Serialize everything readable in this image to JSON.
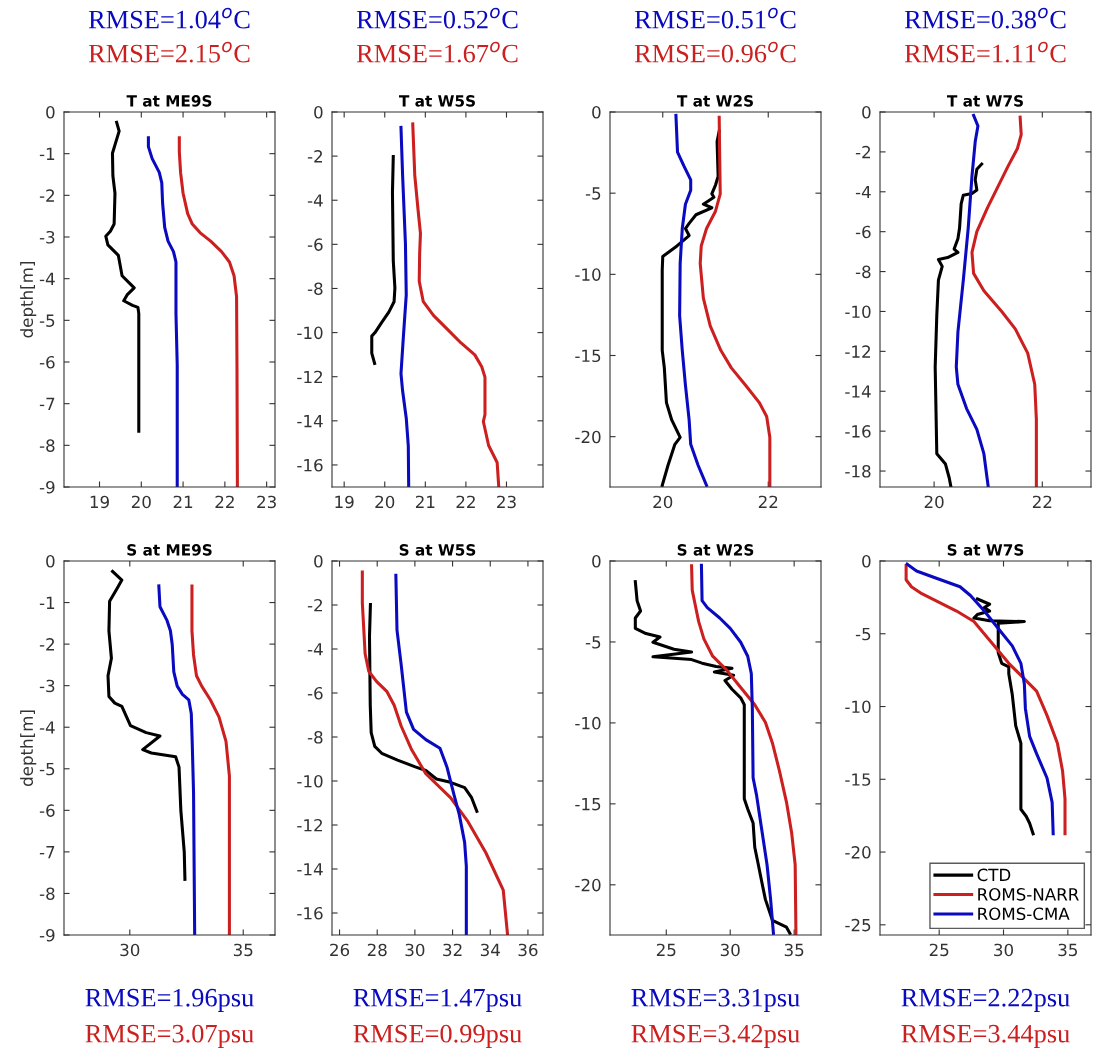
{
  "chart_data": [
    {
      "type": "line",
      "title": "T at ME9S",
      "ylabel": "depth[m]",
      "xlim": [
        18.15,
        23.2
      ],
      "xticks": [
        19,
        20,
        21,
        22,
        23
      ],
      "ylim": [
        -9,
        0
      ],
      "yticks": [
        0,
        -1,
        -2,
        -3,
        -4,
        -5,
        -6,
        -7,
        -8,
        -9
      ],
      "grid": false,
      "legend": false,
      "annotations": [
        "RMSE=1.04$^{o}$C",
        "RMSE=2.15$^{o}$C"
      ],
      "series": [
        {
          "color": "#000000",
          "x": [
            19.41,
            19.47,
            19.37,
            19.31,
            19.32,
            19.37,
            19.35,
            19.26,
            19.15,
            19.2,
            19.32,
            19.45,
            19.54,
            19.71,
            19.83,
            19.66,
            19.58,
            19.79,
            19.92,
            19.94,
            19.94,
            19.94
          ],
          "values": [
            -0.25,
            -0.46,
            -0.79,
            -0.99,
            -1.53,
            -1.95,
            -2.69,
            -2.86,
            -2.98,
            -3.19,
            -3.31,
            -3.44,
            -3.93,
            -4.1,
            -4.22,
            -4.39,
            -4.53,
            -4.64,
            -4.69,
            -4.84,
            -6.91,
            -7.66
          ]
        },
        {
          "color": "#cc1f1f",
          "x": [
            20.91,
            20.91,
            20.94,
            21.0,
            21.11,
            21.22,
            21.41,
            21.66,
            21.92,
            22.11,
            22.22,
            22.28,
            22.29,
            22.3
          ],
          "values": [
            -0.62,
            -0.95,
            -1.45,
            -1.95,
            -2.44,
            -2.69,
            -2.9,
            -3.1,
            -3.35,
            -3.6,
            -3.93,
            -4.43,
            -6.08,
            -9.0
          ]
        },
        {
          "color": "#0a0ac0",
          "x": [
            20.17,
            20.17,
            20.26,
            20.43,
            20.49,
            20.51,
            20.56,
            20.64,
            20.77,
            20.83,
            20.83,
            20.86,
            20.86
          ],
          "values": [
            -0.62,
            -0.83,
            -1.12,
            -1.45,
            -1.7,
            -2.19,
            -2.77,
            -3.1,
            -3.35,
            -3.6,
            -4.84,
            -6.08,
            -9.0
          ]
        }
      ]
    },
    {
      "type": "line",
      "title": "T at W5S",
      "xlim": [
        18.7,
        23.9
      ],
      "xticks": [
        19,
        20,
        21,
        22,
        23
      ],
      "ylim": [
        -17,
        0
      ],
      "yticks": [
        0,
        -2,
        -4,
        -6,
        -8,
        -10,
        -12,
        -14,
        -16
      ],
      "grid": false,
      "legend": false,
      "annotations": [
        "RMSE=0.52$^{o}$C",
        "RMSE=1.67$^{o}$C"
      ],
      "series": [
        {
          "color": "#000000",
          "x": [
            20.21,
            20.19,
            20.21,
            20.25,
            20.23,
            20.1,
            19.93,
            19.76,
            19.68,
            19.68,
            19.75
          ],
          "values": [
            -2.02,
            -3.64,
            -6.74,
            -7.98,
            -8.6,
            -9.07,
            -9.53,
            -10.0,
            -10.16,
            -10.93,
            -11.4
          ]
        },
        {
          "color": "#cc1f1f",
          "x": [
            20.69,
            20.74,
            20.82,
            20.88,
            20.86,
            20.85,
            20.95,
            21.2,
            21.54,
            21.88,
            22.22,
            22.39,
            22.47,
            22.47,
            22.43,
            22.56,
            22.77,
            22.81
          ],
          "values": [
            -0.54,
            -2.87,
            -4.42,
            -5.5,
            -6.43,
            -7.67,
            -8.6,
            -9.22,
            -9.84,
            -10.47,
            -11.01,
            -11.55,
            -12.02,
            -13.72,
            -14.03,
            -15.12,
            -15.89,
            -17.0
          ]
        },
        {
          "color": "#0a0ac0",
          "x": [
            20.4,
            20.44,
            20.51,
            20.53,
            20.46,
            20.4,
            20.44,
            20.53,
            20.58,
            20.59
          ],
          "values": [
            -0.7,
            -2.87,
            -5.97,
            -8.29,
            -10.16,
            -11.86,
            -12.64,
            -13.88,
            -15.12,
            -17.0
          ]
        }
      ]
    },
    {
      "type": "line",
      "title": "T at W2S",
      "xlim": [
        19,
        23
      ],
      "xticks": [
        20,
        22
      ],
      "ylim": [
        -23.1,
        0
      ],
      "yticks": [
        0,
        -5,
        -10,
        -15,
        -20
      ],
      "grid": false,
      "legend": false,
      "annotations": [
        "RMSE=0.51$^{o}$C",
        "RMSE=0.96$^{o}$C"
      ],
      "series": [
        {
          "color": "#000000",
          "x": [
            21.07,
            21.03,
            21.05,
            21.0,
            20.93,
            20.97,
            20.77,
            20.93,
            20.63,
            20.5,
            20.43,
            20.5,
            20.27,
            20.0,
            19.99,
            19.99,
            20.03,
            20.07,
            20.17,
            20.33,
            20.23,
            20.1,
            19.99
          ],
          "values": [
            -1.18,
            -1.82,
            -3.97,
            -4.5,
            -5.04,
            -5.25,
            -5.68,
            -5.9,
            -6.33,
            -6.86,
            -7.18,
            -7.61,
            -8.25,
            -8.9,
            -9.75,
            -14.68,
            -15.76,
            -17.9,
            -18.97,
            -20.04,
            -20.47,
            -21.76,
            -23.0
          ]
        },
        {
          "color": "#cc1f1f",
          "x": [
            21.07,
            21.08,
            21.09,
            21.0,
            20.83,
            20.73,
            20.71,
            20.77,
            20.9,
            21.1,
            21.3,
            21.57,
            21.83,
            21.97,
            22.03,
            22.03
          ],
          "values": [
            -0.32,
            -2.89,
            -5.04,
            -6.11,
            -7.18,
            -8.25,
            -9.33,
            -11.47,
            -13.18,
            -14.68,
            -15.76,
            -16.83,
            -17.9,
            -18.76,
            -20.04,
            -23.0
          ]
        },
        {
          "color": "#0a0ac0",
          "x": [
            20.25,
            20.28,
            20.4,
            20.53,
            20.53,
            20.43,
            20.37,
            20.33,
            20.32,
            20.37,
            20.43,
            20.5,
            20.53,
            20.67,
            20.83
          ],
          "values": [
            -0.21,
            -2.47,
            -3.32,
            -4.18,
            -4.82,
            -5.68,
            -7.18,
            -9.33,
            -12.54,
            -14.68,
            -16.83,
            -18.97,
            -20.47,
            -21.76,
            -23.0
          ]
        }
      ]
    },
    {
      "type": "line",
      "title": "T at W7S",
      "xlim": [
        19,
        22.9
      ],
      "xticks": [
        20,
        22
      ],
      "ylim": [
        -18.8,
        0
      ],
      "yticks": [
        0,
        -2,
        -4,
        -6,
        -8,
        -10,
        -12,
        -14,
        -16,
        -18
      ],
      "grid": false,
      "legend": false,
      "annotations": [
        "RMSE=0.38$^{o}$C",
        "RMSE=1.11$^{o}$C"
      ],
      "series": [
        {
          "color": "#000000",
          "x": [
            20.88,
            20.79,
            20.76,
            20.79,
            20.7,
            20.54,
            20.5,
            20.47,
            20.44,
            20.37,
            20.44,
            20.25,
            20.08,
            20.15,
            20.08,
            20.05,
            20.02,
            20.05,
            20.21,
            20.28,
            20.31
          ],
          "values": [
            -2.61,
            -2.87,
            -3.39,
            -3.91,
            -4.09,
            -4.17,
            -4.61,
            -5.83,
            -6.35,
            -6.87,
            -7.04,
            -7.3,
            -7.39,
            -7.74,
            -8.43,
            -10.17,
            -12.78,
            -17.13,
            -17.65,
            -18.35,
            -18.78
          ]
        },
        {
          "color": "#cc1f1f",
          "x": [
            21.59,
            21.61,
            21.54,
            21.37,
            21.18,
            20.99,
            20.79,
            20.7,
            20.73,
            20.92,
            21.25,
            21.5,
            21.73,
            21.86,
            21.89,
            21.89
          ],
          "values": [
            -0.26,
            -1.13,
            -1.83,
            -2.7,
            -3.74,
            -4.78,
            -6.0,
            -7.04,
            -8.09,
            -8.96,
            -10.0,
            -10.87,
            -12.09,
            -13.65,
            -15.39,
            -18.78
          ]
        },
        {
          "color": "#0a0ac0",
          "x": [
            20.73,
            20.81,
            20.76,
            20.7,
            20.63,
            20.54,
            20.44,
            20.41,
            20.44,
            20.6,
            20.79,
            20.92,
            21.0
          ],
          "values": [
            -0.17,
            -0.7,
            -1.48,
            -3.22,
            -5.83,
            -8.43,
            -11.04,
            -12.78,
            -13.65,
            -14.87,
            -15.91,
            -17.13,
            -18.78
          ]
        }
      ]
    },
    {
      "type": "line",
      "title": "S at ME9S",
      "ylabel": "depth[m]",
      "xlim": [
        27.1,
        36.4
      ],
      "xticks": [
        30,
        35
      ],
      "ylim": [
        -9,
        0
      ],
      "yticks": [
        0,
        -1,
        -2,
        -3,
        -4,
        -5,
        -6,
        -7,
        -8,
        -9
      ],
      "grid": false,
      "legend": false,
      "annotations": [
        "RMSE=1.96psu",
        "RMSE=3.07psu"
      ],
      "series": [
        {
          "color": "#000000",
          "x": [
            29.24,
            29.65,
            29.42,
            29.11,
            29.08,
            29.19,
            29.04,
            29.08,
            29.34,
            29.65,
            30.03,
            30.72,
            31.33,
            30.57,
            30.95,
            32.02,
            32.17,
            32.25,
            32.4,
            32.43
          ],
          "values": [
            -0.25,
            -0.46,
            -0.68,
            -0.97,
            -1.68,
            -2.34,
            -2.76,
            -3.26,
            -3.42,
            -3.5,
            -3.96,
            -4.13,
            -4.21,
            -4.54,
            -4.62,
            -4.71,
            -4.96,
            -6.0,
            -7.0,
            -7.66
          ]
        },
        {
          "color": "#cc1f1f",
          "x": [
            32.74,
            32.74,
            32.81,
            32.94,
            33.17,
            33.55,
            33.93,
            34.24,
            34.39,
            34.39
          ],
          "values": [
            -0.6,
            -1.68,
            -2.26,
            -2.76,
            -3.01,
            -3.34,
            -3.75,
            -4.34,
            -5.17,
            -9.0
          ]
        },
        {
          "color": "#0a0ac0",
          "x": [
            31.28,
            31.33,
            31.64,
            31.79,
            31.87,
            31.94,
            32.09,
            32.32,
            32.6,
            32.71,
            32.75,
            32.81,
            32.86
          ],
          "values": [
            -0.6,
            -1.1,
            -1.43,
            -1.68,
            -2.01,
            -2.67,
            -3.01,
            -3.21,
            -3.34,
            -3.67,
            -4.34,
            -5.58,
            -9.0
          ]
        }
      ]
    },
    {
      "type": "line",
      "title": "S at W5S",
      "xlim": [
        25.6,
        36.8
      ],
      "xticks": [
        26,
        28,
        30,
        32,
        34,
        36
      ],
      "ylim": [
        -17,
        0
      ],
      "yticks": [
        0,
        -2,
        -4,
        -6,
        -8,
        -10,
        -12,
        -14,
        -16
      ],
      "grid": false,
      "legend": false,
      "annotations": [
        "RMSE=1.47psu",
        "RMSE=0.99psu"
      ],
      "series": [
        {
          "color": "#000000",
          "x": [
            27.64,
            27.59,
            27.63,
            27.68,
            27.87,
            28.24,
            29.08,
            30.02,
            30.58,
            31.14,
            31.89,
            32.64,
            33.01,
            33.29
          ],
          "values": [
            -1.98,
            -3.44,
            -6.55,
            -7.8,
            -8.43,
            -8.74,
            -9.05,
            -9.36,
            -9.52,
            -9.91,
            -10.06,
            -10.3,
            -10.76,
            -11.38
          ]
        },
        {
          "color": "#cc1f1f",
          "x": [
            27.21,
            27.21,
            27.36,
            27.55,
            27.96,
            28.52,
            28.9,
            29.27,
            29.83,
            30.58,
            31.89,
            32.82,
            33.76,
            34.69,
            34.92
          ],
          "values": [
            -0.5,
            -1.9,
            -4.23,
            -5.01,
            -5.47,
            -5.94,
            -6.56,
            -7.5,
            -8.58,
            -9.67,
            -10.76,
            -11.85,
            -13.25,
            -14.96,
            -17.0
          ]
        },
        {
          "color": "#0a0ac0",
          "x": [
            28.99,
            29.05,
            29.27,
            29.55,
            29.93,
            30.58,
            31.33,
            31.7,
            32.07,
            32.36,
            32.64,
            32.73,
            32.73
          ],
          "values": [
            -0.65,
            -3.14,
            -4.7,
            -6.87,
            -7.65,
            -8.12,
            -8.51,
            -9.36,
            -10.61,
            -11.54,
            -12.79,
            -13.87,
            -17.0
          ]
        }
      ]
    },
    {
      "type": "line",
      "title": "S at W2S",
      "xlim": [
        20.6,
        37.1
      ],
      "xticks": [
        25,
        30,
        35
      ],
      "ylim": [
        -23.1,
        0
      ],
      "yticks": [
        0,
        -5,
        -10,
        -15,
        -20
      ],
      "grid": false,
      "legend": false,
      "annotations": [
        "RMSE=3.31psu",
        "RMSE=3.42psu"
      ],
      "series": [
        {
          "color": "#000000",
          "x": [
            22.58,
            22.72,
            22.99,
            22.58,
            22.58,
            23.41,
            24.51,
            23.96,
            25.6,
            26.98,
            23.96,
            26.98,
            27.8,
            28.9,
            30.14,
            28.76,
            30.27,
            29.59,
            30.14,
            30.82,
            31.1,
            31.1,
            31.37,
            31.79,
            31.92,
            32.2,
            32.47,
            32.75,
            33.3,
            34.4,
            34.67
          ],
          "values": [
            -1.27,
            -2.45,
            -3.09,
            -3.52,
            -4.16,
            -4.48,
            -4.7,
            -5.02,
            -5.45,
            -5.62,
            -5.92,
            -6.09,
            -6.31,
            -6.52,
            -6.63,
            -6.85,
            -7.06,
            -7.38,
            -7.92,
            -8.45,
            -8.88,
            -14.68,
            -15.32,
            -16.18,
            -17.68,
            -18.76,
            -19.83,
            -20.9,
            -22.19,
            -22.62,
            -23.0
          ]
        },
        {
          "color": "#cc1f1f",
          "x": [
            26.98,
            27.03,
            27.25,
            27.53,
            27.94,
            28.63,
            29.73,
            30.82,
            31.92,
            32.75,
            33.3,
            33.85,
            34.4,
            34.81,
            35.08,
            35.14
          ],
          "values": [
            -0.3,
            -1.8,
            -2.66,
            -3.73,
            -4.81,
            -5.88,
            -6.74,
            -7.81,
            -8.88,
            -9.96,
            -11.24,
            -12.96,
            -14.89,
            -16.82,
            -18.76,
            -23.0
          ]
        },
        {
          "color": "#0a0ac0",
          "x": [
            27.75,
            27.8,
            28.21,
            29.18,
            30.0,
            30.82,
            31.37,
            31.65,
            31.73,
            31.79,
            32.06,
            32.47,
            32.88,
            33.16,
            33.38
          ],
          "values": [
            -0.26,
            -2.45,
            -2.88,
            -3.52,
            -4.16,
            -5.02,
            -5.88,
            -6.95,
            -9.09,
            -13.39,
            -14.46,
            -16.61,
            -18.76,
            -20.9,
            -23.0
          ]
        }
      ]
    },
    {
      "type": "line",
      "title": "S at W7S",
      "xlim": [
        20.4,
        36.8
      ],
      "xticks": [
        25,
        30,
        35
      ],
      "ylim": [
        -25.7,
        0
      ],
      "yticks": [
        0,
        -5,
        -10,
        -15,
        -20,
        -25
      ],
      "grid": false,
      "legend": "bottom right",
      "annotations": [
        "RMSE=2.22psu",
        "RMSE=3.44psu"
      ],
      "series": [
        {
          "name": "CTD",
          "color": "#000000",
          "x": [
            27.97,
            28.92,
            28.51,
            28.92,
            27.97,
            27.7,
            28.92,
            31.62,
            29.59,
            29.59,
            29.86,
            30.41,
            30.41,
            30.68,
            30.95,
            31.35,
            31.35,
            31.76,
            32.03,
            32.3
          ],
          "values": [
            -2.61,
            -2.97,
            -3.2,
            -3.44,
            -3.68,
            -3.92,
            -4.11,
            -4.16,
            -4.28,
            -6.31,
            -7.03,
            -7.27,
            -7.74,
            -9.18,
            -11.33,
            -12.52,
            -17.06,
            -17.54,
            -18.02,
            -18.74
          ]
        },
        {
          "name": "ROMS-NARR",
          "color": "#cc1f1f",
          "x": [
            22.43,
            22.43,
            22.84,
            23.65,
            25.0,
            26.35,
            27.7,
            29.05,
            30.41,
            31.49,
            32.57,
            33.38,
            34.19,
            34.59,
            34.78,
            34.78
          ],
          "values": [
            -0.33,
            -1.29,
            -1.77,
            -2.25,
            -2.84,
            -3.44,
            -4.16,
            -5.59,
            -7.03,
            -7.98,
            -8.94,
            -10.61,
            -12.52,
            -14.43,
            -16.35,
            -18.74
          ]
        },
        {
          "name": "ROMS-CMA",
          "color": "#0a0ac0",
          "x": [
            22.51,
            23.24,
            24.73,
            26.62,
            27.43,
            28.51,
            29.59,
            30.68,
            31.35,
            31.62,
            31.7,
            32.03,
            32.57,
            33.38,
            33.78,
            33.86
          ],
          "values": [
            -0.22,
            -0.69,
            -1.17,
            -1.77,
            -2.37,
            -3.44,
            -4.64,
            -5.83,
            -7.03,
            -8.46,
            -10.13,
            -12.05,
            -13.24,
            -14.91,
            -16.59,
            -18.74
          ]
        }
      ]
    }
  ]
}
